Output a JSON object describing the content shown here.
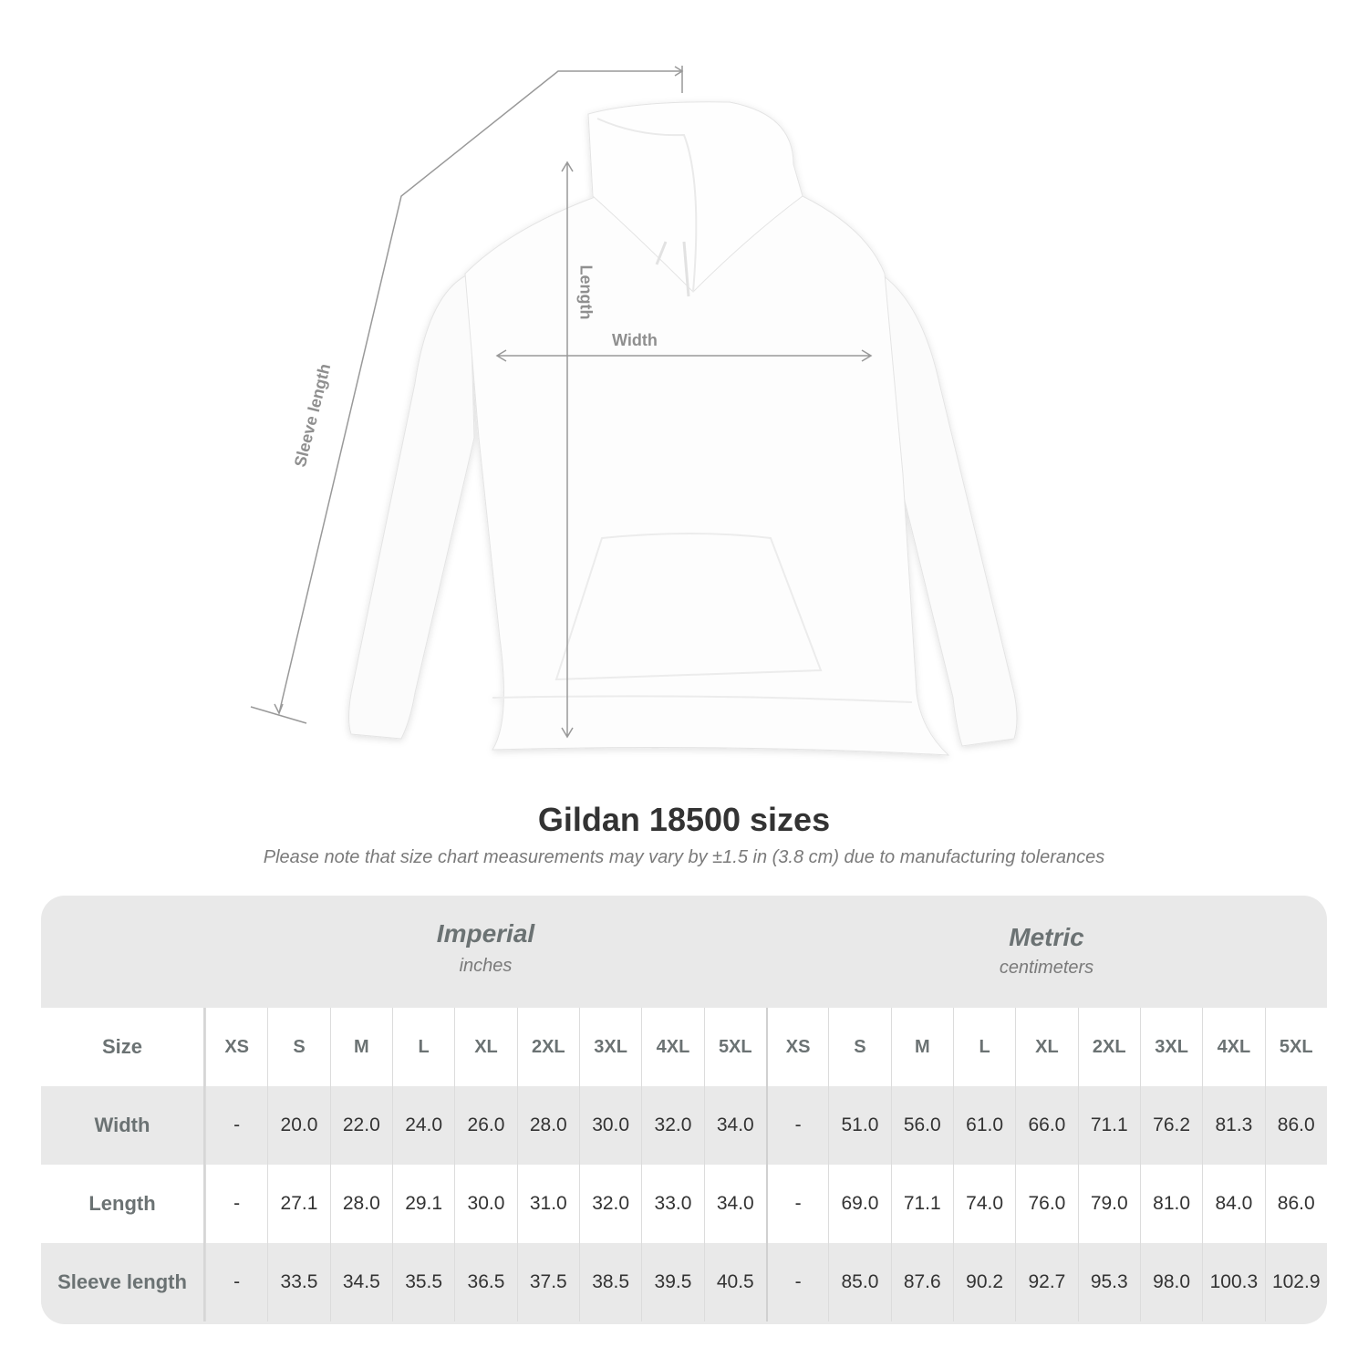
{
  "figure": {
    "labels": {
      "sleeve": "Sleeve length",
      "length": "Length",
      "width": "Width"
    },
    "colors": {
      "garment": "#ffffff",
      "measure_line": "#999999"
    }
  },
  "title": "Gildan 18500 sizes",
  "note": "Please note that size chart measurements may vary by ±1.5 in (3.8 cm) due to manufacturing tolerances",
  "table": {
    "imperial": {
      "title": "Imperial",
      "unit": "inches"
    },
    "metric": {
      "title": "Metric",
      "unit": "centimeters"
    },
    "size_label": "Size",
    "sizes": [
      "XS",
      "S",
      "M",
      "L",
      "XL",
      "2XL",
      "3XL",
      "4XL",
      "5XL"
    ],
    "rows": [
      {
        "label": "Width",
        "imperial": [
          "-",
          "20.0",
          "22.0",
          "24.0",
          "26.0",
          "28.0",
          "30.0",
          "32.0",
          "34.0"
        ],
        "metric": [
          "-",
          "51.0",
          "56.0",
          "61.0",
          "66.0",
          "71.1",
          "76.2",
          "81.3",
          "86.0"
        ]
      },
      {
        "label": "Length",
        "imperial": [
          "-",
          "27.1",
          "28.0",
          "29.1",
          "30.0",
          "31.0",
          "32.0",
          "33.0",
          "34.0"
        ],
        "metric": [
          "-",
          "69.0",
          "71.1",
          "74.0",
          "76.0",
          "79.0",
          "81.0",
          "84.0",
          "86.0"
        ]
      },
      {
        "label": "Sleeve length",
        "imperial": [
          "-",
          "33.5",
          "34.5",
          "35.5",
          "36.5",
          "37.5",
          "38.5",
          "39.5",
          "40.5"
        ],
        "metric": [
          "-",
          "85.0",
          "87.6",
          "90.2",
          "92.7",
          "95.3",
          "98.0",
          "100.3",
          "102.9"
        ]
      }
    ]
  }
}
